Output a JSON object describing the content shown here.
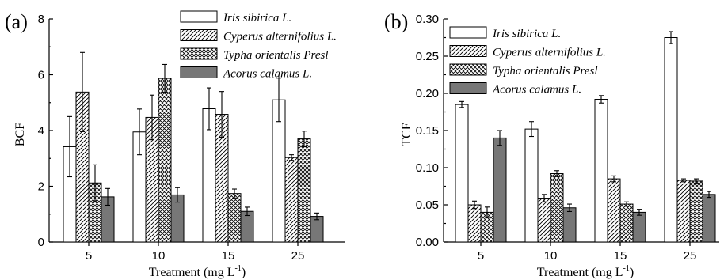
{
  "chart_data": [
    {
      "panel_label": "(a)",
      "type": "bar",
      "xlabel_main": "Treatment (mg L",
      "xlabel_sup": "-1",
      "xlabel_close": ")",
      "ylabel": "BCF",
      "categories": [
        "5",
        "10",
        "15",
        "25"
      ],
      "ylim": [
        0,
        8
      ],
      "yticks": [
        "0",
        "2",
        "4",
        "6",
        "8"
      ],
      "grid": false,
      "legend_position": "top-right",
      "series": [
        {
          "name": "Iris sibirica L.",
          "pattern": "white",
          "values": [
            3.42,
            3.95,
            4.78,
            5.1
          ],
          "errors": [
            1.08,
            0.82,
            0.75,
            0.78
          ]
        },
        {
          "name": "Cyperus alternifolius L.",
          "pattern": "hatch",
          "values": [
            5.38,
            4.47,
            4.58,
            3.03
          ],
          "errors": [
            1.42,
            0.8,
            0.82,
            0.1
          ]
        },
        {
          "name": "Typha orientalis Presl",
          "pattern": "cross",
          "values": [
            2.12,
            5.87,
            1.74,
            3.7
          ],
          "errors": [
            0.65,
            0.5,
            0.16,
            0.28
          ]
        },
        {
          "name": "Acorus calamus L.",
          "pattern": "gray",
          "values": [
            1.62,
            1.69,
            1.1,
            0.92
          ],
          "errors": [
            0.3,
            0.26,
            0.15,
            0.12
          ]
        }
      ]
    },
    {
      "panel_label": "(b)",
      "type": "bar",
      "xlabel_main": "Treatment (mg L",
      "xlabel_sup": "-1",
      "xlabel_close": ")",
      "ylabel": "TCF",
      "categories": [
        "5",
        "10",
        "15",
        "25"
      ],
      "ylim": [
        0,
        0.3
      ],
      "yticks": [
        "0.00",
        "0.05",
        "0.10",
        "0.15",
        "0.20",
        "0.25",
        "0.30"
      ],
      "grid": false,
      "legend_position": "top-left",
      "series": [
        {
          "name": "Iris sibirica L.",
          "pattern": "white",
          "values": [
            0.185,
            0.152,
            0.192,
            0.275
          ],
          "errors": [
            0.004,
            0.01,
            0.005,
            0.008
          ]
        },
        {
          "name": "Cyperus alternifolius L.",
          "pattern": "hatch",
          "values": [
            0.05,
            0.059,
            0.085,
            0.083
          ],
          "errors": [
            0.005,
            0.005,
            0.004,
            0.002
          ]
        },
        {
          "name": "Typha orientalis Presl",
          "pattern": "cross",
          "values": [
            0.04,
            0.092,
            0.051,
            0.082
          ],
          "errors": [
            0.007,
            0.004,
            0.003,
            0.003
          ]
        },
        {
          "name": "Acorus calamus L.",
          "pattern": "gray",
          "values": [
            0.14,
            0.046,
            0.04,
            0.064
          ],
          "errors": [
            0.01,
            0.005,
            0.004,
            0.004
          ]
        }
      ]
    }
  ]
}
